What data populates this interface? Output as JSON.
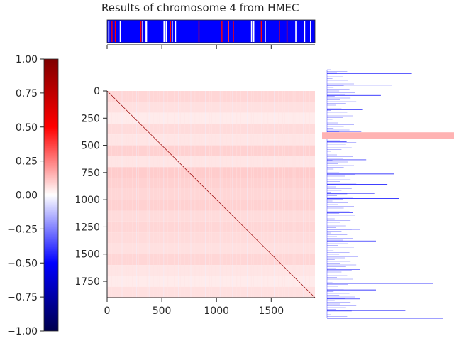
{
  "chart_data": {
    "type": "heatmap",
    "title": "Results of chromosome 4 from HMEC",
    "xlabel": "",
    "ylabel": "",
    "matrix_size": 1900,
    "x_ticks": [
      0,
      500,
      1000,
      1500
    ],
    "y_ticks": [
      0,
      250,
      500,
      750,
      1000,
      1250,
      1500,
      1750
    ],
    "colorbar": {
      "min": -1.0,
      "max": 1.0,
      "ticks": [
        -1.0,
        -0.75,
        -0.5,
        -0.25,
        0.0,
        0.25,
        0.5,
        0.75,
        1.0
      ],
      "tick_labels": [
        "−1.00",
        "−0.75",
        "−0.50",
        "−0.25",
        "0.00",
        "0.25",
        "0.50",
        "0.75",
        "1.00"
      ],
      "colormap": [
        "#00004c",
        "#0000ff",
        "#ffffff",
        "#ff0000",
        "#7f0000"
      ]
    },
    "diagonal_value": 0.5,
    "highlight_row_range": [
      380,
      440
    ],
    "highlight_color": "#ffb3b3",
    "background_row_bins": [
      {
        "start": 0,
        "end": 100,
        "value": 0.08
      },
      {
        "start": 100,
        "end": 200,
        "value": 0.06
      },
      {
        "start": 200,
        "end": 300,
        "value": 0.04
      },
      {
        "start": 300,
        "end": 400,
        "value": 0.07
      },
      {
        "start": 400,
        "end": 500,
        "value": 0.05
      },
      {
        "start": 500,
        "end": 600,
        "value": 0.09
      },
      {
        "start": 600,
        "end": 700,
        "value": 0.05
      },
      {
        "start": 700,
        "end": 800,
        "value": 0.1
      },
      {
        "start": 800,
        "end": 900,
        "value": 0.09
      },
      {
        "start": 900,
        "end": 1000,
        "value": 0.08
      },
      {
        "start": 1000,
        "end": 1100,
        "value": 0.09
      },
      {
        "start": 1100,
        "end": 1200,
        "value": 0.07
      },
      {
        "start": 1200,
        "end": 1300,
        "value": 0.08
      },
      {
        "start": 1300,
        "end": 1400,
        "value": 0.07
      },
      {
        "start": 1400,
        "end": 1500,
        "value": 0.06
      },
      {
        "start": 1500,
        "end": 1600,
        "value": 0.08
      },
      {
        "start": 1600,
        "end": 1700,
        "value": 0.05
      },
      {
        "start": 1700,
        "end": 1800,
        "value": 0.04
      },
      {
        "start": 1800,
        "end": 1900,
        "value": 0.06
      }
    ],
    "top_track": {
      "base_color": "#0000ff",
      "red_bins": [
        40,
        70,
        305,
        575,
        835,
        1045,
        1105,
        1150,
        1405,
        1570,
        1640
      ],
      "white_bins": [
        10,
        115,
        320,
        345,
        355,
        515,
        535,
        590,
        620,
        1105,
        1315,
        1335,
        1440,
        1720,
        1800,
        1855
      ]
    },
    "right_profile": {
      "color": "#0000ff",
      "peaks": [
        {
          "row": 30,
          "value": 0.52
        },
        {
          "row": 120,
          "value": 0.4
        },
        {
          "row": 200,
          "value": 0.33
        },
        {
          "row": 250,
          "value": 0.24
        },
        {
          "row": 310,
          "value": 0.22
        },
        {
          "row": 480,
          "value": 0.21
        },
        {
          "row": 560,
          "value": 0.12
        },
        {
          "row": 700,
          "value": 0.24
        },
        {
          "row": 810,
          "value": 0.41
        },
        {
          "row": 890,
          "value": 0.37
        },
        {
          "row": 960,
          "value": 0.29
        },
        {
          "row": 1000,
          "value": 0.44
        },
        {
          "row": 1110,
          "value": 0.16
        },
        {
          "row": 1240,
          "value": 0.2
        },
        {
          "row": 1330,
          "value": 0.3
        },
        {
          "row": 1450,
          "value": 0.19
        },
        {
          "row": 1550,
          "value": 0.2
        },
        {
          "row": 1660,
          "value": 0.65
        },
        {
          "row": 1710,
          "value": 0.3
        },
        {
          "row": 1780,
          "value": 0.2
        },
        {
          "row": 1870,
          "value": 0.48
        },
        {
          "row": 1930,
          "value": 0.71
        }
      ],
      "highlight_row_range": [
        380,
        440
      ]
    }
  }
}
